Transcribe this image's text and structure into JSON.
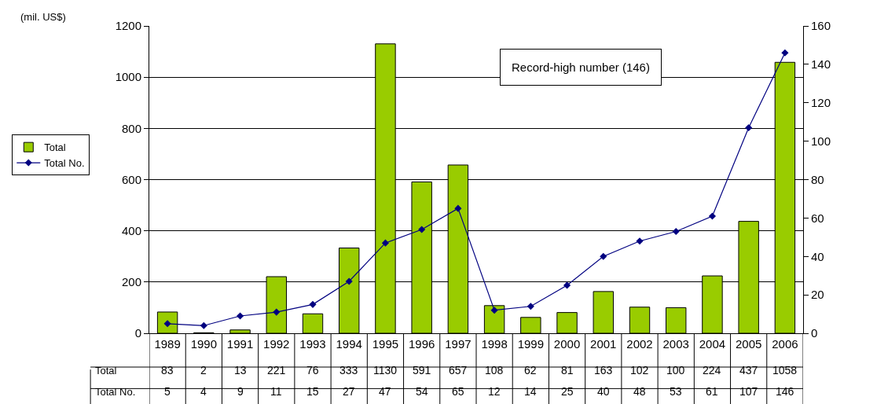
{
  "chart_data": {
    "type": "bar",
    "ylabel": "(mil. US$)",
    "categories": [
      "1989",
      "1990",
      "1991",
      "1992",
      "1993",
      "1994",
      "1995",
      "1996",
      "1997",
      "1998",
      "1999",
      "2000",
      "2001",
      "2002",
      "2003",
      "2004",
      "2005",
      "2006"
    ],
    "series": [
      {
        "name": "Total",
        "color": "#99cc00",
        "values": [
          83,
          2,
          13,
          221,
          76,
          333,
          1130,
          591,
          657,
          108,
          62,
          81,
          163,
          102,
          100,
          224,
          437,
          1058
        ]
      },
      {
        "name": "Total No.",
        "type": "line",
        "axis": "y2",
        "color": "#000080",
        "marker": "diamond",
        "values": [
          5,
          4,
          9,
          11,
          15,
          27,
          47,
          54,
          65,
          12,
          14,
          25,
          40,
          48,
          53,
          61,
          107,
          146
        ]
      }
    ],
    "ylim": [
      0,
      1200
    ],
    "yticks": [
      0,
      200,
      400,
      600,
      800,
      1000,
      1200
    ],
    "y2lim": [
      0,
      160
    ],
    "y2ticks": [
      0,
      20,
      40,
      60,
      80,
      100,
      120,
      140,
      160
    ],
    "grid": "y",
    "legend": "left",
    "data_labels": true,
    "annotations": [
      "Record-high number (146)"
    ]
  }
}
